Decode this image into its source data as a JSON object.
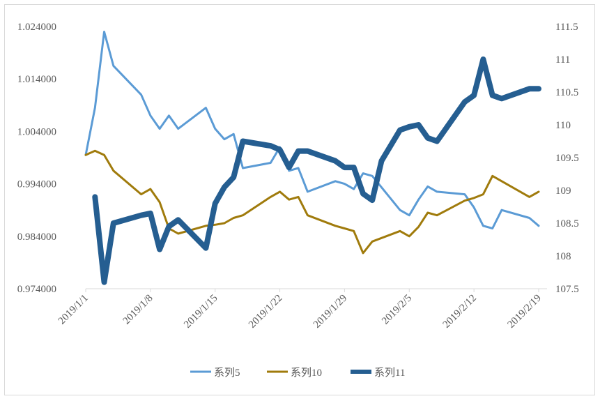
{
  "chart_data": {
    "type": "line",
    "title": "",
    "xlabel": "",
    "ylabel": "",
    "x_range": [
      "2019/1/1",
      "2019/2/19"
    ],
    "x_ticks": [
      "2019/1/1",
      "2019/1/8",
      "2019/1/15",
      "2019/1/22",
      "2019/1/29",
      "2019/2/5",
      "2019/2/12",
      "2019/2/19"
    ],
    "y_left": {
      "range": [
        0.974,
        1.024
      ],
      "ticks": [
        "0.974000",
        "0.984000",
        "0.994000",
        "1.004000",
        "1.014000",
        "1.024000"
      ],
      "tick_values": [
        0.974,
        0.984,
        0.994,
        1.004,
        1.014,
        1.024
      ]
    },
    "y_right": {
      "range": [
        107.5,
        111.5
      ],
      "ticks": [
        "107.5",
        "108",
        "108.5",
        "109",
        "109.5",
        "110",
        "110.5",
        "111",
        "111.5"
      ],
      "tick_values": [
        107.5,
        108,
        108.5,
        109,
        109.5,
        110,
        110.5,
        111,
        111.5
      ]
    },
    "grid": false,
    "legend_position": "bottom",
    "series": [
      {
        "name": "系列5",
        "axis": "left",
        "color": "#5b9bd5",
        "width": 3,
        "points": [
          [
            "2019/1/1",
            0.9995
          ],
          [
            "2019/1/2",
            1.0085
          ],
          [
            "2019/1/3",
            1.023
          ],
          [
            "2019/1/4",
            1.0165
          ],
          [
            "2019/1/7",
            1.011
          ],
          [
            "2019/1/8",
            1.007
          ],
          [
            "2019/1/9",
            1.0045
          ],
          [
            "2019/1/10",
            1.007
          ],
          [
            "2019/1/11",
            1.0045
          ],
          [
            "2019/1/14",
            1.0085
          ],
          [
            "2019/1/15",
            1.0045
          ],
          [
            "2019/1/16",
            1.0025
          ],
          [
            "2019/1/17",
            1.0035
          ],
          [
            "2019/1/18",
            0.997
          ],
          [
            "2019/1/21",
            0.998
          ],
          [
            "2019/1/22",
            1.001
          ],
          [
            "2019/1/23",
            0.9965
          ],
          [
            "2019/1/24",
            0.997
          ],
          [
            "2019/1/25",
            0.9925
          ],
          [
            "2019/1/28",
            0.9945
          ],
          [
            "2019/1/29",
            0.994
          ],
          [
            "2019/1/30",
            0.993
          ],
          [
            "2019/1/31",
            0.996
          ],
          [
            "2019/2/1",
            0.9955
          ],
          [
            "2019/2/4",
            0.989
          ],
          [
            "2019/2/5",
            0.988
          ],
          [
            "2019/2/6",
            0.991
          ],
          [
            "2019/2/7",
            0.9935
          ],
          [
            "2019/2/8",
            0.9925
          ],
          [
            "2019/2/11",
            0.992
          ],
          [
            "2019/2/12",
            0.9895
          ],
          [
            "2019/2/13",
            0.986
          ],
          [
            "2019/2/14",
            0.9855
          ],
          [
            "2019/2/15",
            0.989
          ],
          [
            "2019/2/18",
            0.9875
          ],
          [
            "2019/2/19",
            0.986
          ]
        ]
      },
      {
        "name": "系列10",
        "axis": "left",
        "color": "#a07b0c",
        "width": 3,
        "points": [
          [
            "2019/1/1",
            0.9995
          ],
          [
            "2019/1/2",
            1.0003
          ],
          [
            "2019/1/3",
            0.9995
          ],
          [
            "2019/1/4",
            0.9965
          ],
          [
            "2019/1/7",
            0.992
          ],
          [
            "2019/1/8",
            0.993
          ],
          [
            "2019/1/9",
            0.9905
          ],
          [
            "2019/1/10",
            0.9855
          ],
          [
            "2019/1/11",
            0.9845
          ],
          [
            "2019/1/14",
            0.986
          ],
          [
            "2019/1/15",
            0.9862
          ],
          [
            "2019/1/16",
            0.9865
          ],
          [
            "2019/1/17",
            0.9875
          ],
          [
            "2019/1/18",
            0.988
          ],
          [
            "2019/1/21",
            0.9915
          ],
          [
            "2019/1/22",
            0.9925
          ],
          [
            "2019/1/23",
            0.991
          ],
          [
            "2019/1/24",
            0.9915
          ],
          [
            "2019/1/25",
            0.988
          ],
          [
            "2019/1/28",
            0.986
          ],
          [
            "2019/1/29",
            0.9855
          ],
          [
            "2019/1/30",
            0.985
          ],
          [
            "2019/1/31",
            0.9808
          ],
          [
            "2019/2/1",
            0.983
          ],
          [
            "2019/2/4",
            0.985
          ],
          [
            "2019/2/5",
            0.984
          ],
          [
            "2019/2/6",
            0.9858
          ],
          [
            "2019/2/7",
            0.9885
          ],
          [
            "2019/2/8",
            0.988
          ],
          [
            "2019/2/11",
            0.9908
          ],
          [
            "2019/2/12",
            0.9913
          ],
          [
            "2019/2/13",
            0.992
          ],
          [
            "2019/2/14",
            0.9955
          ],
          [
            "2019/2/15",
            0.9945
          ],
          [
            "2019/2/18",
            0.9915
          ],
          [
            "2019/2/19",
            0.9925
          ]
        ]
      },
      {
        "name": "系列11",
        "axis": "right",
        "color": "#255e91",
        "width": 8,
        "points": [
          [
            "2019/1/2",
            108.9
          ],
          [
            "2019/1/3",
            107.6
          ],
          [
            "2019/1/4",
            108.5
          ],
          [
            "2019/1/7",
            108.62
          ],
          [
            "2019/1/8",
            108.65
          ],
          [
            "2019/1/9",
            108.1
          ],
          [
            "2019/1/10",
            108.45
          ],
          [
            "2019/1/11",
            108.55
          ],
          [
            "2019/1/14",
            108.12
          ],
          [
            "2019/1/15",
            108.8
          ],
          [
            "2019/1/16",
            109.05
          ],
          [
            "2019/1/17",
            109.2
          ],
          [
            "2019/1/18",
            109.75
          ],
          [
            "2019/1/21",
            109.68
          ],
          [
            "2019/1/22",
            109.62
          ],
          [
            "2019/1/23",
            109.35
          ],
          [
            "2019/1/24",
            109.6
          ],
          [
            "2019/1/25",
            109.6
          ],
          [
            "2019/1/28",
            109.45
          ],
          [
            "2019/1/29",
            109.35
          ],
          [
            "2019/1/30",
            109.35
          ],
          [
            "2019/1/31",
            108.95
          ],
          [
            "2019/2/1",
            108.85
          ],
          [
            "2019/2/2",
            109.45
          ],
          [
            "2019/2/4",
            109.92
          ],
          [
            "2019/2/5",
            109.97
          ],
          [
            "2019/2/6",
            110.0
          ],
          [
            "2019/2/7",
            109.8
          ],
          [
            "2019/2/8",
            109.75
          ],
          [
            "2019/2/11",
            110.35
          ],
          [
            "2019/2/12",
            110.45
          ],
          [
            "2019/2/13",
            111.0
          ],
          [
            "2019/2/14",
            110.45
          ],
          [
            "2019/2/15",
            110.4
          ],
          [
            "2019/2/18",
            110.55
          ],
          [
            "2019/2/19",
            110.55
          ]
        ]
      }
    ]
  }
}
